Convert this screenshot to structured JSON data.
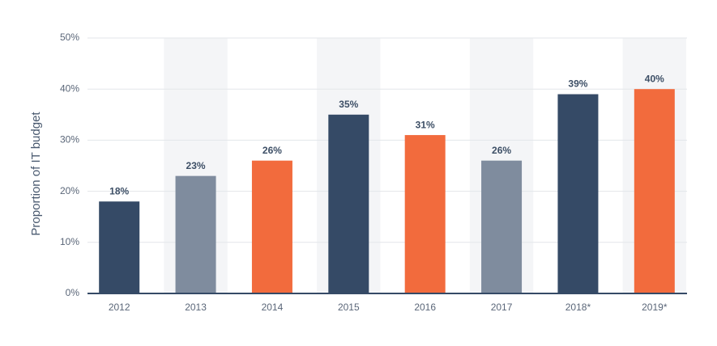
{
  "chart_data": {
    "type": "bar",
    "y_label": "Proportion of IT budget",
    "categories": [
      "2012",
      "2013",
      "2014",
      "2015",
      "2016",
      "2017",
      "2018*",
      "2019*"
    ],
    "values": [
      18,
      23,
      26,
      35,
      31,
      26,
      39,
      40
    ],
    "value_labels": [
      "18%",
      "23%",
      "26%",
      "35%",
      "31%",
      "26%",
      "39%",
      "40%"
    ],
    "colors": [
      "#354a66",
      "#7f8c9e",
      "#f26b3d",
      "#354a66",
      "#f26b3d",
      "#7f8c9e",
      "#354a66",
      "#f26b3d"
    ],
    "ylim": [
      0,
      50
    ],
    "yticks": [
      {
        "value": 0,
        "label": "0%"
      },
      {
        "value": 10,
        "label": "10%"
      },
      {
        "value": 20,
        "label": "20%"
      },
      {
        "value": 30,
        "label": "30%"
      },
      {
        "value": 40,
        "label": "40%"
      },
      {
        "value": 50,
        "label": "50%"
      }
    ],
    "grid": true
  }
}
